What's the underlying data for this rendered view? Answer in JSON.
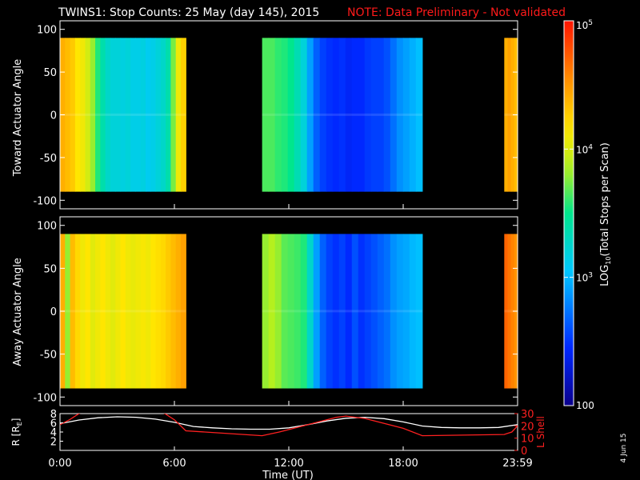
{
  "header": {
    "title": "TWINS1: Stop Counts: 25 May (day 145), 2015",
    "note": "NOTE: Data Preliminary - Not validated",
    "note_color": "#ff1a1a"
  },
  "footer": {
    "date_stamp": "4 Jun 15"
  },
  "chart_data": [
    {
      "type": "heatmap",
      "name": "toward-panel",
      "ylabel": "Toward Actuator Angle",
      "ylim": [
        -110,
        110
      ],
      "yticks": [
        100,
        50,
        0,
        -50,
        -100
      ],
      "xlim": [
        0,
        24
      ],
      "data_y_range": [
        -90,
        90
      ],
      "segments": [
        {
          "start": 0.0,
          "end": 6.6,
          "profile": [
            0.8,
            0.78,
            0.76,
            0.72,
            0.7,
            0.66,
            0.6,
            0.52,
            0.46,
            0.42,
            0.4,
            0.4,
            0.39,
            0.4,
            0.38,
            0.38,
            0.39,
            0.37,
            0.38,
            0.4,
            0.42,
            0.46,
            0.58,
            0.7,
            0.75
          ]
        },
        {
          "start": 10.6,
          "end": 19.0,
          "profile": [
            0.55,
            0.55,
            0.53,
            0.52,
            0.5,
            0.45,
            0.4,
            0.3,
            0.22,
            0.18,
            0.16,
            0.15,
            0.16,
            0.14,
            0.15,
            0.15,
            0.17,
            0.18,
            0.18,
            0.2,
            0.24,
            0.28,
            0.3,
            0.32,
            0.34
          ]
        },
        {
          "start": 23.3,
          "end": 24.0,
          "profile": [
            0.8,
            0.82,
            0.8,
            0.78
          ]
        }
      ]
    },
    {
      "type": "heatmap",
      "name": "away-panel",
      "ylabel": "Away Actuator Angle",
      "ylim": [
        -110,
        110
      ],
      "yticks": [
        100,
        50,
        0,
        -50,
        -100
      ],
      "xlim": [
        0,
        24
      ],
      "data_y_range": [
        -90,
        90
      ],
      "segments": [
        {
          "start": 0.0,
          "end": 6.6,
          "profile": [
            0.8,
            0.6,
            0.78,
            0.74,
            0.7,
            0.72,
            0.68,
            0.7,
            0.72,
            0.7,
            0.68,
            0.7,
            0.72,
            0.7,
            0.69,
            0.7,
            0.71,
            0.7,
            0.72,
            0.73,
            0.74,
            0.76,
            0.78,
            0.8,
            0.82
          ]
        },
        {
          "start": 10.6,
          "end": 19.0,
          "profile": [
            0.6,
            0.62,
            0.6,
            0.56,
            0.55,
            0.54,
            0.52,
            0.42,
            0.3,
            0.22,
            0.18,
            0.16,
            0.18,
            0.15,
            0.2,
            0.16,
            0.18,
            0.2,
            0.22,
            0.24,
            0.28,
            0.3,
            0.31,
            0.33,
            0.34
          ]
        },
        {
          "start": 23.3,
          "end": 24.0,
          "profile": [
            0.9,
            0.88,
            0.86,
            0.84
          ]
        }
      ]
    },
    {
      "type": "line",
      "name": "orbit-panel",
      "xlabel": "Time (UT)",
      "ylabel_left": "R [R",
      "ylabel_left_sub": "E",
      "ylabel_left_tail": "]",
      "ylabel_right": "L Shell",
      "ylim_left": [
        0,
        8
      ],
      "ylim_right": [
        0,
        30
      ],
      "yticks_left": [
        8,
        6,
        4,
        2
      ],
      "yticks_right": [
        30,
        20,
        10,
        0
      ],
      "xlim": [
        0,
        24
      ],
      "xticks": [
        {
          "value": 0,
          "label": "0:00"
        },
        {
          "value": 6,
          "label": "6:00"
        },
        {
          "value": 12,
          "label": "12:00"
        },
        {
          "value": 18,
          "label": "18:00"
        },
        {
          "value": 24,
          "label": "23:59"
        }
      ],
      "series": [
        {
          "axis": "left",
          "color": "#ffffff",
          "x": [
            0,
            1,
            2,
            3,
            4,
            5,
            6,
            7,
            8,
            9,
            10,
            11,
            12,
            13,
            14,
            15,
            16,
            17,
            18,
            19,
            20,
            21,
            22,
            23,
            24
          ],
          "y": [
            5.8,
            6.6,
            7.1,
            7.3,
            7.2,
            6.8,
            6.1,
            5.2,
            4.9,
            4.7,
            4.6,
            4.6,
            4.9,
            5.6,
            6.4,
            7.0,
            7.2,
            6.9,
            6.2,
            5.3,
            5.0,
            4.9,
            4.9,
            5.0,
            5.6
          ]
        },
        {
          "axis": "right",
          "color": "#ff2020",
          "x": [
            0,
            0.5,
            1,
            1.5,
            5.0,
            5.5,
            6.0,
            6.6,
            10.6,
            11.5,
            12.5,
            13.5,
            14.5,
            15.0,
            16.0,
            17.0,
            18.0,
            19.0,
            23.3,
            23.7,
            24.0
          ],
          "y": [
            21,
            25,
            30,
            33,
            33,
            30,
            25,
            16,
            12,
            15,
            19,
            23,
            27,
            28,
            26,
            22,
            18,
            12,
            13,
            15,
            20
          ]
        }
      ]
    },
    {
      "type": "colorbar",
      "name": "colorbar",
      "label_prefix": "LOG",
      "label_sub": "10",
      "label_suffix": "(Total Stops per Scan)",
      "scale": "log",
      "range": [
        100,
        100000
      ],
      "ticks": [
        {
          "value": 100000,
          "base": "10",
          "exp": "5"
        },
        {
          "value": 10000,
          "base": "10",
          "exp": "4"
        },
        {
          "value": 1000,
          "base": "10",
          "exp": "3"
        },
        {
          "value": 100,
          "label": "100"
        }
      ]
    }
  ]
}
